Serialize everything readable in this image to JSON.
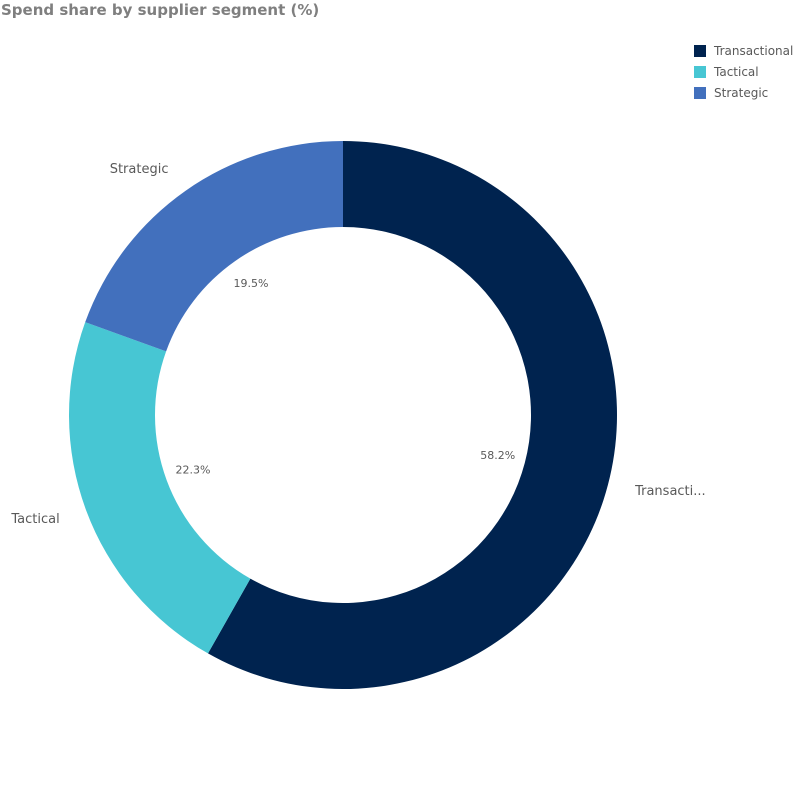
{
  "chart_data": {
    "type": "pie",
    "title": "Spend share by supplier segment (%)",
    "categories": [
      "Transactional",
      "Tactical",
      "Strategic"
    ],
    "display_labels": [
      "Transacti...",
      "Tactical",
      "Strategic"
    ],
    "values": [
      58.2,
      22.3,
      19.5
    ],
    "value_labels": [
      "58.2%",
      "22.3%",
      "19.5%"
    ],
    "colors": [
      "#00234f",
      "#47c6d3",
      "#4270bd"
    ],
    "donut": true,
    "legend_position": "top-right",
    "legend": [
      {
        "label": "Transactional",
        "color": "#00234f"
      },
      {
        "label": "Tactical",
        "color": "#47c6d3"
      },
      {
        "label": "Strategic",
        "color": "#4270bd"
      }
    ]
  }
}
